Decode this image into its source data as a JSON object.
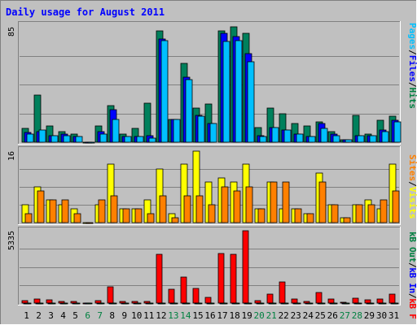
{
  "title": "Daily usage for August 2011",
  "colors": {
    "background": "#c0c0c0",
    "frame_light": "#ffffff",
    "frame_dark": "#808080",
    "title": "#0000ff",
    "weekday_label": "#000000",
    "weekend_label": "#008040",
    "hits": "#00805c",
    "files": "#0000ff",
    "pages": "#00c0ff",
    "visits": "#ffff00",
    "sites": "#ff8000",
    "kb_f": "#ff0000",
    "kb_in": "#0000ff",
    "kb_out": "#008040",
    "label_pages": "#00c0ff",
    "label_files": "#0000ff",
    "label_hits": "#008040",
    "label_visits": "#ffff00",
    "label_sites": "#ff8000",
    "label_out": "#008040",
    "label_in": "#0000ff",
    "label_f": "#ff0000",
    "label_sep": "#000000"
  },
  "legends": {
    "top": [
      "Pages",
      "/",
      "Files",
      "/",
      "Hits"
    ],
    "middle": [
      "Sites",
      "/",
      "Visits"
    ],
    "bottom": [
      "kB F",
      "/",
      "kB In",
      "/",
      "kB Out"
    ]
  },
  "chart_data": [
    {
      "type": "bar",
      "panel": "hits-files-pages",
      "ymax_label": "85",
      "ylim": [
        0,
        85
      ],
      "categories": [
        "1",
        "2",
        "3",
        "4",
        "5",
        "6",
        "7",
        "8",
        "9",
        "10",
        "11",
        "12",
        "13",
        "14",
        "15",
        "16",
        "17",
        "18",
        "19",
        "20",
        "21",
        "22",
        "23",
        "24",
        "25",
        "26",
        "27",
        "28",
        "29",
        "30",
        "31"
      ],
      "weekend": [
        6,
        7,
        13,
        14,
        20,
        21,
        27,
        28
      ],
      "series": [
        {
          "key": "hits",
          "values": [
            10,
            35,
            12,
            8,
            6,
            0,
            12,
            27,
            6,
            10,
            29,
            82,
            17,
            58,
            25,
            28,
            82,
            85,
            80,
            11,
            25,
            21,
            14,
            12,
            15,
            8,
            2,
            20,
            6,
            16,
            19
          ]
        },
        {
          "key": "files",
          "values": [
            7,
            8,
            5,
            6,
            4,
            0,
            8,
            24,
            4,
            4,
            5,
            76,
            17,
            48,
            20,
            14,
            80,
            78,
            65,
            5,
            11,
            9,
            6,
            4,
            14,
            6,
            2,
            5,
            5,
            9,
            16
          ]
        },
        {
          "key": "pages",
          "values": [
            6,
            9,
            5,
            5,
            4,
            0,
            6,
            17,
            4,
            4,
            3,
            75,
            17,
            46,
            19,
            14,
            74,
            75,
            59,
            4,
            11,
            9,
            6,
            4,
            10,
            5,
            2,
            5,
            5,
            8,
            15
          ]
        }
      ]
    },
    {
      "type": "bar",
      "panel": "visits-sites",
      "ymax_label": "16",
      "ylim": [
        0,
        16
      ],
      "series": [
        {
          "key": "visits",
          "values": [
            4,
            8,
            5,
            4,
            3,
            0,
            4,
            13,
            3,
            3,
            5,
            12,
            2,
            13,
            16,
            9,
            10,
            9,
            13,
            3,
            9,
            3,
            3,
            2,
            11,
            4,
            1,
            4,
            5,
            3,
            13
          ]
        },
        {
          "key": "sites",
          "values": [
            2,
            7,
            5,
            5,
            2,
            0,
            5,
            6,
            3,
            3,
            2,
            6,
            1,
            6,
            6,
            4,
            8,
            7,
            8,
            3,
            9,
            9,
            3,
            2,
            9,
            4,
            1,
            4,
            4,
            5,
            7
          ]
        }
      ]
    },
    {
      "type": "bar",
      "panel": "kbytes",
      "ymax_label": "5335",
      "ylim": [
        0,
        5335
      ],
      "series": [
        {
          "key": "kb_f",
          "values": [
            180,
            310,
            230,
            140,
            110,
            0,
            200,
            1220,
            90,
            110,
            90,
            3600,
            1020,
            1890,
            1090,
            420,
            3640,
            3610,
            5335,
            160,
            660,
            1550,
            310,
            140,
            790,
            320,
            70,
            350,
            220,
            310,
            660
          ]
        },
        {
          "key": "kb_in",
          "values": [
            0,
            0,
            0,
            0,
            0,
            0,
            0,
            0,
            0,
            0,
            0,
            0,
            0,
            0,
            0,
            0,
            0,
            0,
            0,
            0,
            0,
            0,
            0,
            0,
            0,
            0,
            0,
            0,
            0,
            0,
            0
          ]
        },
        {
          "key": "kb_out",
          "values": [
            0,
            0,
            0,
            0,
            0,
            0,
            0,
            0,
            0,
            0,
            0,
            0,
            0,
            0,
            0,
            0,
            0,
            0,
            0,
            0,
            0,
            0,
            0,
            0,
            0,
            0,
            0,
            0,
            0,
            0,
            0
          ]
        }
      ]
    }
  ]
}
